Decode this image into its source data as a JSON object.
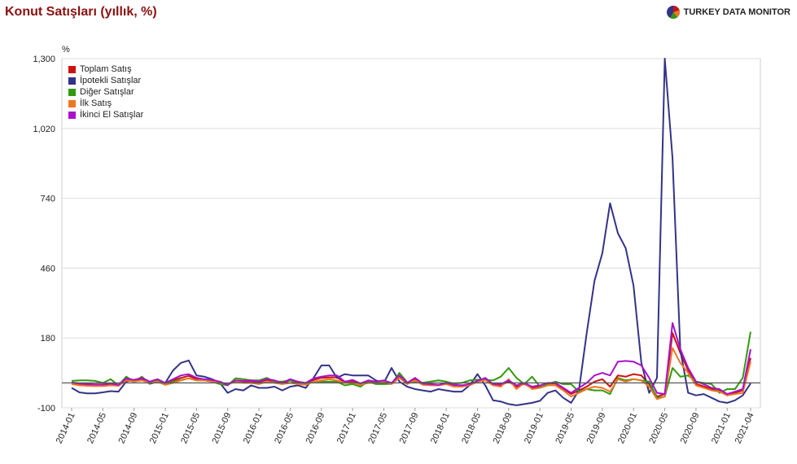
{
  "header": {
    "title": "Konut Satışları (yıllık, %)",
    "brand": "TURKEY DATA MONITOR",
    "brand_icon": "pie-logo-icon"
  },
  "chart_data": {
    "type": "line",
    "title": "Konut Satışları (yıllık, %)",
    "ylabel": "%",
    "xlabel": "",
    "ylim": [
      -100,
      1300
    ],
    "yticks": [
      -100,
      180,
      460,
      740,
      1020,
      1300
    ],
    "ytick_labels": [
      "-100",
      "180",
      "460",
      "740",
      "1,020",
      "1,300"
    ],
    "baseline": 0,
    "grid": true,
    "legend_position": "top-left",
    "categories": [
      "2014-01",
      "2014-02",
      "2014-03",
      "2014-04",
      "2014-05",
      "2014-06",
      "2014-07",
      "2014-08",
      "2014-09",
      "2014-10",
      "2014-11",
      "2014-12",
      "2015-01",
      "2015-02",
      "2015-03",
      "2015-04",
      "2015-05",
      "2015-06",
      "2015-07",
      "2015-08",
      "2015-09",
      "2015-10",
      "2015-11",
      "2015-12",
      "2016-01",
      "2016-02",
      "2016-03",
      "2016-04",
      "2016-05",
      "2016-06",
      "2016-07",
      "2016-08",
      "2016-09",
      "2016-10",
      "2016-11",
      "2016-12",
      "2017-01",
      "2017-02",
      "2017-03",
      "2017-04",
      "2017-05",
      "2017-06",
      "2017-07",
      "2017-08",
      "2017-09",
      "2017-10",
      "2017-11",
      "2017-12",
      "2018-01",
      "2018-02",
      "2018-03",
      "2018-04",
      "2018-05",
      "2018-06",
      "2018-07",
      "2018-08",
      "2018-09",
      "2018-10",
      "2018-11",
      "2018-12",
      "2019-01",
      "2019-02",
      "2019-03",
      "2019-04",
      "2019-05",
      "2019-06",
      "2019-07",
      "2019-08",
      "2019-09",
      "2019-10",
      "2019-11",
      "2019-12",
      "2020-01",
      "2020-02",
      "2020-03",
      "2020-04",
      "2020-05",
      "2020-06",
      "2020-07",
      "2020-08",
      "2020-09",
      "2020-10",
      "2020-11",
      "2020-12",
      "2021-01",
      "2021-02",
      "2021-03",
      "2021-04"
    ],
    "xtick_labels": [
      "2014-01",
      "2014-05",
      "2014-09",
      "2015-01",
      "2015-05",
      "2015-09",
      "2016-01",
      "2016-05",
      "2016-09",
      "2017-01",
      "2017-05",
      "2017-09",
      "2018-01",
      "2018-05",
      "2018-09",
      "2019-01",
      "2019-05",
      "2019-09",
      "2020-01",
      "2020-05",
      "2020-09",
      "2021-01",
      "2021-04"
    ],
    "series": [
      {
        "name": "Toplam Satış",
        "color": "#cc1111",
        "values": [
          -2,
          -5,
          -8,
          -9,
          -9,
          -6,
          -10,
          15,
          8,
          15,
          2,
          10,
          -3,
          10,
          20,
          28,
          15,
          12,
          10,
          2,
          -7,
          8,
          4,
          7,
          2,
          12,
          5,
          -2,
          10,
          1,
          -3,
          12,
          20,
          22,
          22,
          2,
          6,
          -5,
          5,
          2,
          5,
          -3,
          24,
          -2,
          15,
          -5,
          -9,
          -10,
          -3,
          -11,
          -12,
          -8,
          4,
          15,
          -7,
          -9,
          5,
          -15,
          -4,
          -20,
          -14,
          -3,
          -3,
          -23,
          -45,
          -30,
          -15,
          5,
          15,
          -15,
          30,
          25,
          35,
          30,
          -5,
          -55,
          -45,
          200,
          120,
          50,
          -5,
          -14,
          -25,
          -30,
          -50,
          -40,
          -30,
          100
        ]
      },
      {
        "name": "İpotekli Satışlar",
        "color": "#333388",
        "values": [
          -20,
          -38,
          -42,
          -42,
          -38,
          -33,
          -35,
          5,
          12,
          20,
          -4,
          5,
          0,
          50,
          80,
          90,
          30,
          25,
          15,
          0,
          -40,
          -25,
          -30,
          -10,
          -20,
          -20,
          -15,
          -30,
          -15,
          -10,
          -20,
          20,
          70,
          70,
          20,
          35,
          30,
          30,
          30,
          10,
          0,
          60,
          5,
          -15,
          -25,
          -30,
          -35,
          -25,
          -30,
          -35,
          -35,
          -10,
          35,
          -10,
          -70,
          -75,
          -85,
          -90,
          -85,
          -80,
          -72,
          -40,
          -30,
          -60,
          -80,
          -30,
          200,
          410,
          520,
          720,
          600,
          540,
          390,
          80,
          -40,
          20,
          1300,
          900,
          130,
          -40,
          -50,
          -45,
          -60,
          -75,
          -80,
          -70,
          -50,
          -2
        ]
      },
      {
        "name": "Diğer Satışlar",
        "color": "#339911",
        "values": [
          8,
          10,
          10,
          8,
          0,
          15,
          -10,
          25,
          5,
          25,
          -3,
          10,
          -4,
          5,
          12,
          18,
          10,
          10,
          5,
          -5,
          -10,
          18,
          15,
          10,
          10,
          20,
          5,
          5,
          10,
          -5,
          -3,
          5,
          5,
          5,
          5,
          -10,
          -5,
          -15,
          5,
          -5,
          -5,
          -4,
          40,
          2,
          5,
          1,
          5,
          10,
          5,
          -3,
          0,
          10,
          13,
          12,
          10,
          25,
          60,
          20,
          -5,
          25,
          -15,
          -5,
          5,
          -5,
          -5,
          -35,
          -25,
          -30,
          -30,
          -45,
          20,
          10,
          15,
          10,
          5,
          -60,
          -55,
          60,
          25,
          30,
          5,
          0,
          -5,
          -40,
          -25,
          -25,
          20,
          205
        ]
      },
      {
        "name": "İlk Satış",
        "color": "#ee7722",
        "values": [
          -5,
          -10,
          -12,
          -13,
          -13,
          -10,
          -12,
          10,
          5,
          10,
          0,
          5,
          -8,
          0,
          10,
          18,
          10,
          10,
          5,
          0,
          -5,
          5,
          0,
          0,
          -5,
          5,
          0,
          -5,
          0,
          -5,
          -8,
          5,
          10,
          15,
          10,
          0,
          0,
          -8,
          0,
          0,
          5,
          -5,
          20,
          -5,
          10,
          -8,
          -10,
          -10,
          -5,
          -15,
          -15,
          -10,
          5,
          10,
          -10,
          -15,
          15,
          -25,
          0,
          -25,
          -20,
          -10,
          -10,
          -30,
          -55,
          -40,
          -25,
          -15,
          -20,
          -35,
          15,
          5,
          15,
          10,
          -15,
          -65,
          -55,
          140,
          80,
          40,
          -10,
          -20,
          -30,
          -35,
          -50,
          -45,
          -40,
          85
        ]
      },
      {
        "name": "İkinci El Satışlar",
        "color": "#aa11cc",
        "values": [
          2,
          -2,
          -5,
          -6,
          -6,
          -3,
          -8,
          18,
          12,
          20,
          5,
          15,
          0,
          15,
          30,
          35,
          20,
          15,
          12,
          5,
          -8,
          10,
          8,
          10,
          5,
          15,
          10,
          0,
          15,
          5,
          0,
          18,
          25,
          30,
          30,
          5,
          12,
          -2,
          10,
          5,
          10,
          0,
          30,
          0,
          20,
          -3,
          -5,
          -8,
          0,
          -8,
          -10,
          -5,
          8,
          20,
          -5,
          -5,
          10,
          -10,
          0,
          -15,
          -10,
          0,
          0,
          -20,
          -40,
          -20,
          0,
          30,
          40,
          30,
          85,
          88,
          85,
          70,
          20,
          -40,
          -45,
          240,
          135,
          60,
          5,
          -5,
          -20,
          -25,
          -45,
          -35,
          -25,
          135
        ]
      }
    ]
  }
}
